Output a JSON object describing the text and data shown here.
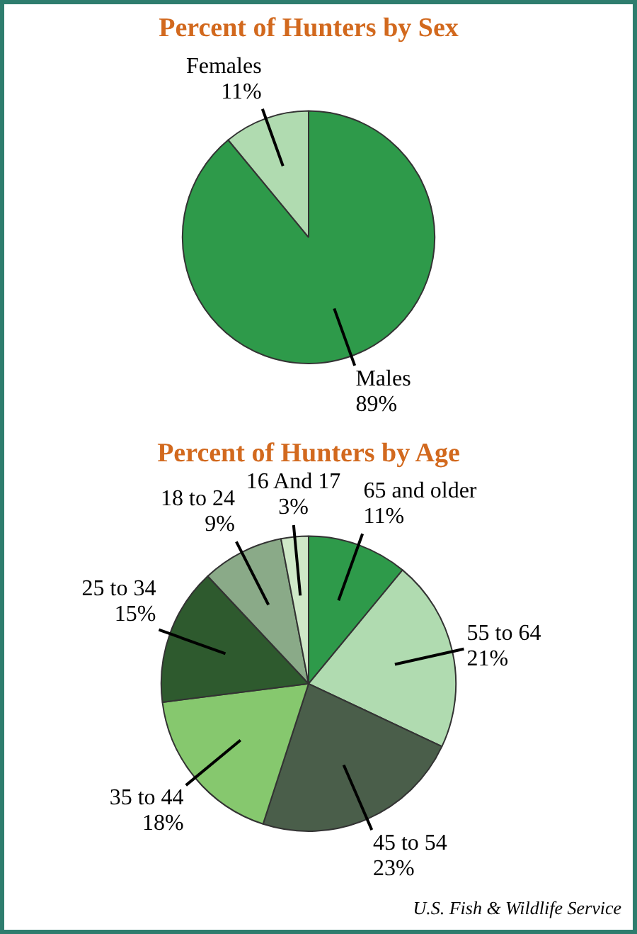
{
  "chart_data": [
    {
      "type": "pie",
      "title": "Percent of Hunters by Sex",
      "categories": [
        "Males",
        "Females"
      ],
      "values": [
        89,
        11
      ],
      "colors": [
        "#2e9a4a",
        "#b0dbb0"
      ],
      "value_labels": [
        "89%",
        "11%"
      ]
    },
    {
      "type": "pie",
      "title": "Percent of Hunters by Age",
      "categories": [
        "65 and older",
        "55 to 64",
        "45 to 54",
        "35 to 44",
        "25 to 34",
        "18 to 24",
        "16 And 17"
      ],
      "values": [
        11,
        21,
        23,
        18,
        15,
        9,
        3
      ],
      "colors": [
        "#2e9a4a",
        "#b0dbb0",
        "#4a5e4a",
        "#86c86e",
        "#2e5a2e",
        "#8aaa88",
        "#cfe8c8"
      ],
      "value_labels": [
        "11%",
        "21%",
        "23%",
        "18%",
        "15%",
        "9%",
        "3%"
      ],
      "annotations": [
        "U.S. Fish & Wildlife Service"
      ]
    }
  ]
}
